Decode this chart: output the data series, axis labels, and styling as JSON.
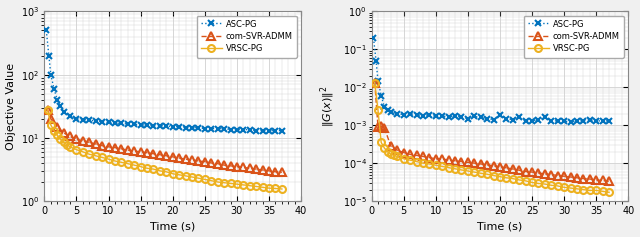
{
  "left_plot": {
    "xlabel": "Time (s)",
    "ylabel": "Objective Value",
    "xlim": [
      0,
      40
    ],
    "ylim": [
      1.0,
      1000.0
    ],
    "asc_pg": {
      "x": [
        0.3,
        0.7,
        1.0,
        1.5,
        2.0,
        2.5,
        3.0,
        4.0,
        5.0,
        6.0,
        7.0,
        8.0,
        9.0,
        10.0,
        11.0,
        12.0,
        13.0,
        14.0,
        15.0,
        16.0,
        17.0,
        18.0,
        19.0,
        20.0,
        21.0,
        22.0,
        23.0,
        24.0,
        25.0,
        26.0,
        27.0,
        28.0,
        29.0,
        30.0,
        31.0,
        32.0,
        33.0,
        34.0,
        35.0,
        36.0,
        37.0
      ],
      "y": [
        500,
        200,
        100,
        60,
        40,
        32,
        26,
        22,
        20,
        19.5,
        19,
        18.5,
        18,
        17.5,
        17,
        17,
        16.5,
        16.5,
        16,
        16,
        15.5,
        15.5,
        15.5,
        15,
        15,
        14.5,
        14.5,
        14.5,
        14,
        14,
        14,
        14,
        13.5,
        13.5,
        13.5,
        13.5,
        13,
        13,
        13,
        13,
        13
      ],
      "color": "#0072BD",
      "linestyle": ":",
      "marker": "x",
      "markersize": 5,
      "linewidth": 1.0
    },
    "com_svr_admm": {
      "x": [
        0.5,
        1.0,
        2.0,
        3.0,
        4.0,
        5.0,
        6.0,
        7.0,
        8.0,
        9.0,
        10.0,
        11.0,
        12.0,
        13.0,
        14.0,
        15.0,
        16.0,
        17.0,
        18.0,
        19.0,
        20.0,
        21.0,
        22.0,
        23.0,
        24.0,
        25.0,
        26.0,
        27.0,
        28.0,
        29.0,
        30.0,
        31.0,
        32.0,
        33.0,
        34.0,
        35.0,
        36.0,
        37.0
      ],
      "y": [
        28,
        20,
        15,
        12,
        10.5,
        9.5,
        9.0,
        8.5,
        8.0,
        7.5,
        7.2,
        7.0,
        6.7,
        6.4,
        6.2,
        6.0,
        5.8,
        5.6,
        5.4,
        5.2,
        5.0,
        4.8,
        4.6,
        4.5,
        4.3,
        4.2,
        4.0,
        3.9,
        3.7,
        3.6,
        3.5,
        3.4,
        3.3,
        3.2,
        3.1,
        3.0,
        2.9,
        2.85
      ],
      "color": "#D95319",
      "linestyle": "--",
      "marker": "^",
      "markersize": 6,
      "linewidth": 1.0
    },
    "vrsc_pg": {
      "x": [
        0.5,
        1.0,
        1.5,
        2.0,
        2.5,
        3.0,
        3.5,
        4.0,
        5.0,
        6.0,
        7.0,
        8.0,
        9.0,
        10.0,
        11.0,
        12.0,
        13.0,
        14.0,
        15.0,
        16.0,
        17.0,
        18.0,
        19.0,
        20.0,
        21.0,
        22.0,
        23.0,
        24.0,
        25.0,
        26.0,
        27.0,
        28.0,
        29.0,
        30.0,
        31.0,
        32.0,
        33.0,
        34.0,
        35.0,
        36.0,
        37.0
      ],
      "y": [
        28,
        16,
        13,
        11,
        9.5,
        8.5,
        7.8,
        7.2,
        6.5,
        6.0,
        5.5,
        5.2,
        4.9,
        4.6,
        4.3,
        4.1,
        3.9,
        3.7,
        3.5,
        3.3,
        3.2,
        3.0,
        2.9,
        2.7,
        2.6,
        2.5,
        2.4,
        2.3,
        2.2,
        2.1,
        2.0,
        1.95,
        1.9,
        1.85,
        1.8,
        1.75,
        1.7,
        1.65,
        1.6,
        1.58,
        1.55
      ],
      "color": "#EDB120",
      "linestyle": "-",
      "marker": "o",
      "markersize": 5,
      "linewidth": 1.0
    }
  },
  "right_plot": {
    "xlabel": "Time (s)",
    "ylabel": "||G(x)||^2",
    "xlim": [
      0,
      40
    ],
    "ylim": [
      1e-05,
      1.0
    ],
    "asc_pg": {
      "x": [
        0.3,
        0.7,
        1.0,
        1.5,
        2.0,
        2.5,
        3.0,
        4.0,
        5.0,
        6.0,
        7.0,
        8.0,
        9.0,
        10.0,
        11.0,
        12.0,
        13.0,
        14.0,
        15.0,
        16.0,
        17.0,
        18.0,
        19.0,
        20.0,
        21.0,
        22.0,
        23.0,
        24.0,
        25.0,
        26.0,
        27.0,
        28.0,
        29.0,
        30.0,
        31.0,
        32.0,
        33.0,
        34.0,
        35.0,
        36.0,
        37.0
      ],
      "y": [
        0.2,
        0.05,
        0.015,
        0.006,
        0.003,
        0.0025,
        0.0022,
        0.002,
        0.0019,
        0.002,
        0.0019,
        0.0018,
        0.0019,
        0.0017,
        0.0018,
        0.0016,
        0.0018,
        0.0016,
        0.0015,
        0.0017,
        0.0016,
        0.0015,
        0.0014,
        0.0019,
        0.0015,
        0.0014,
        0.0016,
        0.0013,
        0.0013,
        0.0014,
        0.0016,
        0.0013,
        0.0013,
        0.0013,
        0.0012,
        0.0013,
        0.0013,
        0.0014,
        0.0013,
        0.0013,
        0.0013
      ],
      "color": "#0072BD",
      "linestyle": ":",
      "marker": "x",
      "markersize": 5,
      "linewidth": 1.0
    },
    "com_svr_admm": {
      "x": [
        0.5,
        1.0,
        1.5,
        2.0,
        3.0,
        4.0,
        5.0,
        6.0,
        7.0,
        8.0,
        9.0,
        10.0,
        11.0,
        12.0,
        13.0,
        14.0,
        15.0,
        16.0,
        17.0,
        18.0,
        19.0,
        20.0,
        21.0,
        22.0,
        23.0,
        24.0,
        25.0,
        26.0,
        27.0,
        28.0,
        29.0,
        30.0,
        31.0,
        32.0,
        33.0,
        34.0,
        35.0,
        36.0,
        37.0
      ],
      "y": [
        0.013,
        0.0009,
        0.00095,
        0.00085,
        0.00028,
        0.00022,
        0.00019,
        0.00017,
        0.00016,
        0.00015,
        0.00014,
        0.00013,
        0.00013,
        0.00012,
        0.000115,
        0.00011,
        0.000105,
        0.0001,
        9.5e-05,
        9e-05,
        8.5e-05,
        8e-05,
        7.5e-05,
        7e-05,
        6.5e-05,
        6e-05,
        5.8e-05,
        5.5e-05,
        5.2e-05,
        5e-05,
        4.7e-05,
        4.5e-05,
        4.3e-05,
        4.1e-05,
        3.9e-05,
        3.8e-05,
        3.6e-05,
        3.5e-05,
        3.3e-05
      ],
      "color": "#D95319",
      "linestyle": "--",
      "marker": "^",
      "markersize": 6,
      "linewidth": 1.0
    },
    "vrsc_pg": {
      "x": [
        0.5,
        1.0,
        1.5,
        2.0,
        2.5,
        3.0,
        3.5,
        4.0,
        5.0,
        6.0,
        7.0,
        8.0,
        9.0,
        10.0,
        11.0,
        12.0,
        13.0,
        14.0,
        15.0,
        16.0,
        17.0,
        18.0,
        19.0,
        20.0,
        21.0,
        22.0,
        23.0,
        24.0,
        25.0,
        26.0,
        27.0,
        28.0,
        29.0,
        30.0,
        31.0,
        32.0,
        33.0,
        34.0,
        35.0,
        36.0,
        37.0
      ],
      "y": [
        0.013,
        0.0025,
        0.00035,
        0.00025,
        0.0002,
        0.00017,
        0.00016,
        0.00015,
        0.00013,
        0.00012,
        0.00011,
        0.0001,
        9.5e-05,
        8.8e-05,
        8.2e-05,
        7.6e-05,
        7.1e-05,
        6.6e-05,
        6.2e-05,
        5.8e-05,
        5.4e-05,
        5.1e-05,
        4.7e-05,
        4.4e-05,
        4.1e-05,
        3.9e-05,
        3.6e-05,
        3.4e-05,
        3.1e-05,
        2.9e-05,
        2.8e-05,
        2.6e-05,
        2.5e-05,
        2.3e-05,
        2.2e-05,
        2.1e-05,
        2e-05,
        1.9e-05,
        1.9e-05,
        1.8e-05,
        1.7e-05
      ],
      "color": "#EDB120",
      "linestyle": "-",
      "marker": "o",
      "markersize": 5,
      "linewidth": 1.0
    }
  },
  "legend": {
    "asc_pg_label": "ASC-PG",
    "com_svr_admm_label": "com-SVR-ADMM",
    "vrsc_pg_label": "VRSC-PG"
  },
  "bg_color": "#f0f0f0",
  "axes_bg": "#ffffff",
  "grid_color": "#d0d0d0"
}
